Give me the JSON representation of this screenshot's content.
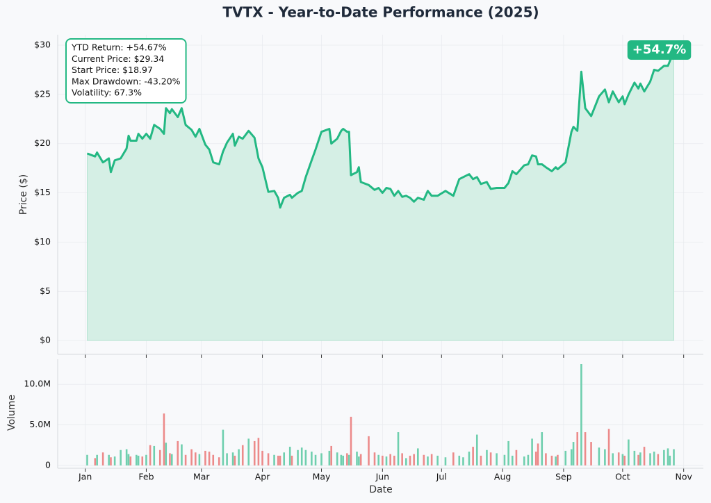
{
  "chart_data": [
    {
      "type": "line",
      "title": "TVTX - Year-to-Date Performance (2025)",
      "y_label": "Price ($)",
      "x": [
        2,
        6,
        7,
        10,
        13,
        14,
        16,
        19,
        22,
        23,
        24,
        27,
        28,
        30,
        32,
        34,
        36,
        39,
        41,
        42,
        44,
        45,
        48,
        50,
        52,
        55,
        57,
        59,
        62,
        64,
        66,
        69,
        71,
        73,
        76,
        77,
        79,
        81,
        84,
        87,
        89,
        91,
        94,
        97,
        99,
        100,
        102,
        105,
        106,
        109,
        111,
        113,
        116,
        118,
        121,
        125,
        126,
        129,
        131,
        132,
        134,
        135,
        136,
        139,
        140,
        141,
        145,
        148,
        150,
        152,
        154,
        156,
        158,
        160,
        162,
        164,
        166,
        168,
        170,
        173,
        175,
        177,
        180,
        184,
        188,
        191,
        193,
        196,
        198,
        200,
        202,
        205,
        207,
        210,
        214,
        216,
        218,
        220,
        224,
        226,
        228,
        230,
        231,
        233,
        235,
        238,
        240,
        241,
        245,
        248,
        249,
        251,
        253,
        255,
        258,
        262,
        265,
        267,
        269,
        272,
        274,
        275,
        277,
        280,
        282,
        283,
        285,
        288,
        290,
        292,
        295,
        297,
        298,
        300
      ],
      "series": [
        {
          "name": "TVTX",
          "color": "#23b883",
          "fill": "#d5efe5",
          "values": [
            19.0,
            18.7,
            19.1,
            18.1,
            18.5,
            17.1,
            18.3,
            18.5,
            19.5,
            20.8,
            20.3,
            20.3,
            21.0,
            20.5,
            21.0,
            20.5,
            21.9,
            21.5,
            21.0,
            23.6,
            23.1,
            23.5,
            22.7,
            23.6,
            21.9,
            21.4,
            20.7,
            21.5,
            19.9,
            19.4,
            18.1,
            17.9,
            19.2,
            20.1,
            21.0,
            19.8,
            20.7,
            20.5,
            21.3,
            20.6,
            18.5,
            17.6,
            15.1,
            15.2,
            14.5,
            13.5,
            14.5,
            14.8,
            14.5,
            15.0,
            15.2,
            16.6,
            18.3,
            19.4,
            21.2,
            21.5,
            20.0,
            20.5,
            21.3,
            21.5,
            21.2,
            21.2,
            16.8,
            17.1,
            17.6,
            16.1,
            15.8,
            15.3,
            15.5,
            15.0,
            15.5,
            15.4,
            14.7,
            15.2,
            14.6,
            14.7,
            14.5,
            14.1,
            14.5,
            14.3,
            15.2,
            14.7,
            14.7,
            15.2,
            14.7,
            16.4,
            16.6,
            16.9,
            16.4,
            16.6,
            15.9,
            16.1,
            15.4,
            15.5,
            15.5,
            16.0,
            17.2,
            16.9,
            17.8,
            17.9,
            18.8,
            18.7,
            17.9,
            17.9,
            17.6,
            17.2,
            17.6,
            17.4,
            18.1,
            21.2,
            21.7,
            21.3,
            27.3,
            23.6,
            22.8,
            24.8,
            25.5,
            24.2,
            25.3,
            24.2,
            24.8,
            24.0,
            25.0,
            26.2,
            25.6,
            26.1,
            25.3,
            26.3,
            27.5,
            27.4,
            27.9,
            27.9,
            28.4,
            29.34
          ]
        }
      ],
      "xlim": [
        -13,
        315
      ],
      "ylim": [
        -1.4,
        31.06
      ],
      "yticks": [
        {
          "value": 0,
          "label": "$0"
        },
        {
          "value": 5,
          "label": "$5"
        },
        {
          "value": 10,
          "label": "$10"
        },
        {
          "value": 15,
          "label": "$15"
        },
        {
          "value": 20,
          "label": "$20"
        },
        {
          "value": 25,
          "label": "$25"
        },
        {
          "value": 30,
          "label": "$30"
        }
      ],
      "stats": [
        "YTD Return: +54.67%",
        "Current Price: $29.34",
        "Start Price: $18.97",
        "Max Drawdown: -43.20%",
        "Volatility: 67.3%"
      ],
      "badge": "+54.7%",
      "grid": true
    },
    {
      "type": "bar",
      "x_label": "Date",
      "y_label": "Volume",
      "up_color": "#6fcfae",
      "down_color": "#ec8a8a",
      "xlim": [
        -13,
        315
      ],
      "ylim": [
        -0.35,
        13.1
      ],
      "xticks": [
        {
          "value": 1,
          "label": "Jan"
        },
        {
          "value": 32,
          "label": "Feb"
        },
        {
          "value": 60,
          "label": "Mar"
        },
        {
          "value": 91,
          "label": "Apr"
        },
        {
          "value": 121,
          "label": "May"
        },
        {
          "value": 152,
          "label": "Jun"
        },
        {
          "value": 182,
          "label": "Jul"
        },
        {
          "value": 213,
          "label": "Aug"
        },
        {
          "value": 244,
          "label": "Sep"
        },
        {
          "value": 274,
          "label": "Oct"
        },
        {
          "value": 305,
          "label": "Nov"
        }
      ],
      "yticks": [
        0,
        {
          "value": 5,
          "label": "5.0M"
        },
        {
          "value": 10,
          "label": "10.0M"
        }
      ],
      "values": [
        1.3,
        0.9,
        1.3,
        1.6,
        1.3,
        1.0,
        1.1,
        1.9,
        2.0,
        1.4,
        1.1,
        1.3,
        1.2,
        1.1,
        1.3,
        2.5,
        2.4,
        1.9,
        6.4,
        2.8,
        1.5,
        1.4,
        3.0,
        2.6,
        1.3,
        2.0,
        1.6,
        1.4,
        1.8,
        1.7,
        1.3,
        1.0,
        4.4,
        1.5,
        1.6,
        1.2,
        2.0,
        2.5,
        3.3,
        3.0,
        3.4,
        1.8,
        1.5,
        1.3,
        1.2,
        1.2,
        1.6,
        2.3,
        1.2,
        1.9,
        2.2,
        1.9,
        1.7,
        1.3,
        1.5,
        1.8,
        2.4,
        1.6,
        1.3,
        1.2,
        1.5,
        1.3,
        6.0,
        1.7,
        1.1,
        1.4,
        3.6,
        1.6,
        1.3,
        1.2,
        1.1,
        1.4,
        1.2,
        4.1,
        1.5,
        0.9,
        1.2,
        1.4,
        2.1,
        1.3,
        1.1,
        1.4,
        1.2,
        1.0,
        1.6,
        1.2,
        1.0,
        1.7,
        2.3,
        3.8,
        1.2,
        1.9,
        1.6,
        1.5,
        1.3,
        3.0,
        1.2,
        1.9,
        1.1,
        1.3,
        3.3,
        1.7,
        2.7,
        4.1,
        1.5,
        1.2,
        1.1,
        1.3,
        1.8,
        2.0,
        2.9,
        4.1,
        12.5,
        4.1,
        2.9,
        2.2,
        2.0,
        4.5,
        1.5,
        1.6,
        1.4,
        1.2,
        3.2,
        1.8,
        1.3,
        1.6,
        2.3,
        1.5,
        1.7,
        1.4,
        1.9,
        2.1,
        1.2,
        2.0
      ],
      "grid": true
    }
  ]
}
